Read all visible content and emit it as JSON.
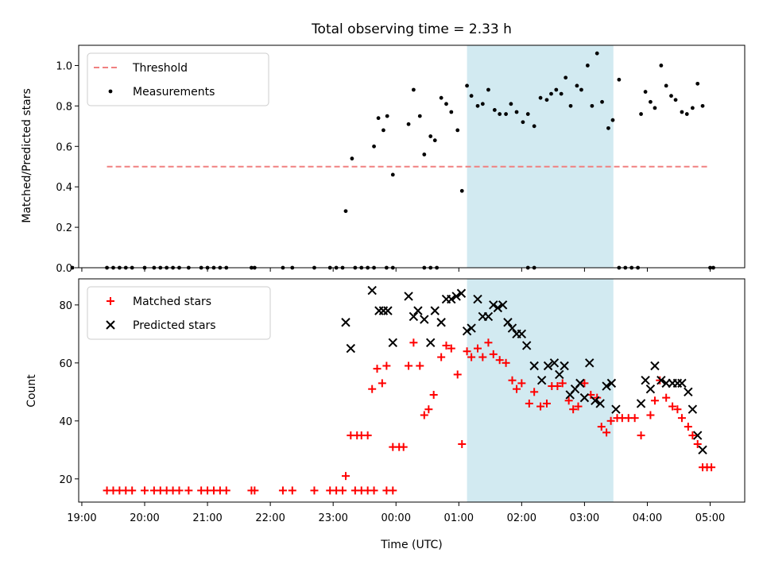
{
  "colors": {
    "threshold": "#f08080",
    "measurement": "#000000",
    "matched": "#ff0000",
    "predicted": "#000000",
    "span": "#add8e6"
  },
  "chart_data": [
    {
      "type": "scatter",
      "title": "Total observing time = 2.33 h",
      "ylabel": "Matched/Predicted stars",
      "ylim": [
        0,
        1.1
      ],
      "yticks": [
        0.0,
        0.2,
        0.4,
        0.6,
        0.8,
        1.0
      ],
      "ytick_labels": [
        "0.0",
        "0.2",
        "0.4",
        "0.6",
        "0.8",
        "1.0"
      ],
      "xlim_hours": [
        -5.05,
        5.55
      ],
      "legend": {
        "placement": "top-left",
        "entries": [
          "Threshold",
          "Measurements"
        ]
      },
      "shaded_span_hours": [
        1.13,
        3.46
      ],
      "threshold": {
        "name": "Threshold",
        "y": 0.5,
        "x_start": -4.6,
        "x_end": 5.0
      },
      "series": [
        {
          "name": "Measurements",
          "points": [
            [
              -4.6,
              0
            ],
            [
              -4.5,
              0
            ],
            [
              -4.4,
              0
            ],
            [
              -4.3,
              0
            ],
            [
              -4.2,
              0
            ],
            [
              -4.0,
              0
            ],
            [
              -3.85,
              0
            ],
            [
              -3.75,
              0
            ],
            [
              -3.65,
              0
            ],
            [
              -3.55,
              0
            ],
            [
              -3.45,
              0
            ],
            [
              -3.3,
              0
            ],
            [
              -3.1,
              0
            ],
            [
              -3.0,
              0
            ],
            [
              -2.9,
              0
            ],
            [
              -2.8,
              0
            ],
            [
              -2.7,
              0
            ],
            [
              -2.3,
              0
            ],
            [
              -2.25,
              0
            ],
            [
              -1.8,
              0
            ],
            [
              -1.65,
              0
            ],
            [
              -1.3,
              0
            ],
            [
              -1.05,
              0
            ],
            [
              -0.95,
              0
            ],
            [
              -0.85,
              0
            ],
            [
              -0.65,
              0
            ],
            [
              -0.55,
              0
            ],
            [
              -0.45,
              0
            ],
            [
              -0.35,
              0
            ],
            [
              -0.15,
              0
            ],
            [
              -0.05,
              0
            ],
            [
              0.45,
              0
            ],
            [
              0.55,
              0
            ],
            [
              0.65,
              0
            ],
            [
              2.1,
              0
            ],
            [
              2.2,
              0
            ],
            [
              5.0,
              0
            ],
            [
              5.05,
              0
            ],
            [
              -5.15,
              0
            ],
            [
              3.55,
              0
            ],
            [
              3.65,
              0
            ],
            [
              3.75,
              0
            ],
            [
              3.85,
              0
            ],
            [
              -0.8,
              0.28
            ],
            [
              -0.7,
              0.54
            ],
            [
              -0.35,
              0.6
            ],
            [
              -0.28,
              0.74
            ],
            [
              -0.2,
              0.68
            ],
            [
              -0.14,
              0.75
            ],
            [
              -0.05,
              0.46
            ],
            [
              0.2,
              0.71
            ],
            [
              0.28,
              0.88
            ],
            [
              0.38,
              0.75
            ],
            [
              0.45,
              0.56
            ],
            [
              0.55,
              0.65
            ],
            [
              0.62,
              0.63
            ],
            [
              0.72,
              0.84
            ],
            [
              0.8,
              0.81
            ],
            [
              0.88,
              0.77
            ],
            [
              0.98,
              0.68
            ],
            [
              1.05,
              0.38
            ],
            [
              1.13,
              0.9
            ],
            [
              1.2,
              0.85
            ],
            [
              1.3,
              0.8
            ],
            [
              1.38,
              0.81
            ],
            [
              1.47,
              0.88
            ],
            [
              1.57,
              0.78
            ],
            [
              1.65,
              0.76
            ],
            [
              1.75,
              0.76
            ],
            [
              1.83,
              0.81
            ],
            [
              1.92,
              0.77
            ],
            [
              2.02,
              0.72
            ],
            [
              2.1,
              0.76
            ],
            [
              2.2,
              0.7
            ],
            [
              2.3,
              0.84
            ],
            [
              2.4,
              0.83
            ],
            [
              2.47,
              0.86
            ],
            [
              2.55,
              0.88
            ],
            [
              2.63,
              0.86
            ],
            [
              2.7,
              0.94
            ],
            [
              2.78,
              0.8
            ],
            [
              2.88,
              0.9
            ],
            [
              2.95,
              0.88
            ],
            [
              3.05,
              1.0
            ],
            [
              3.12,
              0.8
            ],
            [
              3.2,
              1.06
            ],
            [
              3.28,
              0.82
            ],
            [
              3.38,
              0.69
            ],
            [
              3.45,
              0.73
            ],
            [
              3.55,
              0.93
            ],
            [
              3.9,
              0.76
            ],
            [
              3.97,
              0.87
            ],
            [
              4.05,
              0.82
            ],
            [
              4.12,
              0.79
            ],
            [
              4.22,
              1.0
            ],
            [
              4.3,
              0.9
            ],
            [
              4.38,
              0.85
            ],
            [
              4.45,
              0.83
            ],
            [
              4.55,
              0.77
            ],
            [
              4.63,
              0.76
            ],
            [
              4.72,
              0.79
            ],
            [
              4.8,
              0.91
            ],
            [
              4.88,
              0.8
            ]
          ]
        }
      ]
    },
    {
      "type": "scatter",
      "xlabel": "Time (UTC)",
      "ylabel": "Count",
      "ylim": [
        12,
        89
      ],
      "yticks": [
        20,
        40,
        60,
        80
      ],
      "ytick_labels": [
        "20",
        "40",
        "60",
        "80"
      ],
      "xlim_hours": [
        -5.05,
        5.55
      ],
      "xticks_hours": [
        -5,
        -4,
        -3,
        -2,
        -1,
        0,
        1,
        2,
        3,
        4,
        5
      ],
      "xtick_labels": [
        "19:00",
        "20:00",
        "21:00",
        "22:00",
        "23:00",
        "00:00",
        "01:00",
        "02:00",
        "03:00",
        "04:00",
        "05:00"
      ],
      "legend": {
        "placement": "top-left",
        "entries": [
          "Matched stars",
          "Predicted stars"
        ]
      },
      "shaded_span_hours": [
        1.13,
        3.46
      ],
      "series": [
        {
          "name": "Matched stars",
          "points": [
            [
              -4.6,
              16
            ],
            [
              -4.5,
              16
            ],
            [
              -4.4,
              16
            ],
            [
              -4.3,
              16
            ],
            [
              -4.2,
              16
            ],
            [
              -4.0,
              16
            ],
            [
              -3.85,
              16
            ],
            [
              -3.75,
              16
            ],
            [
              -3.65,
              16
            ],
            [
              -3.55,
              16
            ],
            [
              -3.45,
              16
            ],
            [
              -3.3,
              16
            ],
            [
              -3.1,
              16
            ],
            [
              -3.0,
              16
            ],
            [
              -2.9,
              16
            ],
            [
              -2.8,
              16
            ],
            [
              -2.7,
              16
            ],
            [
              -2.3,
              16
            ],
            [
              -2.25,
              16
            ],
            [
              -1.8,
              16
            ],
            [
              -1.65,
              16
            ],
            [
              -1.3,
              16
            ],
            [
              -1.05,
              16
            ],
            [
              -0.95,
              16
            ],
            [
              -0.85,
              16
            ],
            [
              -0.65,
              16
            ],
            [
              -0.55,
              16
            ],
            [
              -0.45,
              16
            ],
            [
              -0.35,
              16
            ],
            [
              -0.15,
              16
            ],
            [
              -0.05,
              16
            ],
            [
              -0.8,
              21
            ],
            [
              -0.72,
              35
            ],
            [
              -0.62,
              35
            ],
            [
              -0.55,
              35
            ],
            [
              -0.45,
              35
            ],
            [
              -0.38,
              51
            ],
            [
              -0.3,
              58
            ],
            [
              -0.22,
              53
            ],
            [
              -0.15,
              59
            ],
            [
              -0.05,
              31
            ],
            [
              0.05,
              31
            ],
            [
              0.12,
              31
            ],
            [
              0.2,
              59
            ],
            [
              0.28,
              67
            ],
            [
              0.38,
              59
            ],
            [
              0.45,
              42
            ],
            [
              0.52,
              44
            ],
            [
              0.6,
              49
            ],
            [
              0.72,
              62
            ],
            [
              0.8,
              66
            ],
            [
              0.88,
              65
            ],
            [
              0.98,
              56
            ],
            [
              1.05,
              32
            ],
            [
              1.13,
              64
            ],
            [
              1.2,
              62
            ],
            [
              1.3,
              65
            ],
            [
              1.38,
              62
            ],
            [
              1.47,
              67
            ],
            [
              1.55,
              63
            ],
            [
              1.65,
              61
            ],
            [
              1.75,
              60
            ],
            [
              1.85,
              54
            ],
            [
              1.92,
              51
            ],
            [
              2.0,
              53
            ],
            [
              2.12,
              46
            ],
            [
              2.2,
              50
            ],
            [
              2.3,
              45
            ],
            [
              2.4,
              46
            ],
            [
              2.48,
              52
            ],
            [
              2.57,
              52
            ],
            [
              2.65,
              53
            ],
            [
              2.75,
              47
            ],
            [
              2.82,
              44
            ],
            [
              2.9,
              45
            ],
            [
              3.0,
              53
            ],
            [
              3.1,
              49
            ],
            [
              3.2,
              48
            ],
            [
              3.27,
              38
            ],
            [
              3.35,
              36
            ],
            [
              3.42,
              40
            ],
            [
              3.52,
              41
            ],
            [
              3.6,
              41
            ],
            [
              3.7,
              41
            ],
            [
              3.8,
              41
            ],
            [
              3.9,
              35
            ],
            [
              4.05,
              42
            ],
            [
              4.12,
              47
            ],
            [
              4.2,
              54
            ],
            [
              4.3,
              48
            ],
            [
              4.4,
              45
            ],
            [
              4.48,
              44
            ],
            [
              4.55,
              41
            ],
            [
              4.65,
              38
            ],
            [
              4.72,
              35
            ],
            [
              4.8,
              32
            ],
            [
              4.88,
              24
            ],
            [
              4.95,
              24
            ],
            [
              5.02,
              24
            ]
          ]
        },
        {
          "name": "Predicted stars",
          "points": [
            [
              -0.8,
              74
            ],
            [
              -0.72,
              65
            ],
            [
              -0.38,
              85
            ],
            [
              -0.27,
              78
            ],
            [
              -0.2,
              78
            ],
            [
              -0.13,
              78
            ],
            [
              -0.05,
              67
            ],
            [
              0.2,
              83
            ],
            [
              0.28,
              76
            ],
            [
              0.35,
              78
            ],
            [
              0.45,
              75
            ],
            [
              0.55,
              67
            ],
            [
              0.62,
              78
            ],
            [
              0.72,
              74
            ],
            [
              0.8,
              82
            ],
            [
              0.88,
              82
            ],
            [
              0.96,
              83
            ],
            [
              1.04,
              84
            ],
            [
              1.13,
              71
            ],
            [
              1.2,
              72
            ],
            [
              1.3,
              82
            ],
            [
              1.38,
              76
            ],
            [
              1.47,
              76
            ],
            [
              1.55,
              80
            ],
            [
              1.62,
              79
            ],
            [
              1.7,
              80
            ],
            [
              1.78,
              74
            ],
            [
              1.85,
              72
            ],
            [
              1.92,
              70
            ],
            [
              2.0,
              70
            ],
            [
              2.08,
              66
            ],
            [
              2.2,
              59
            ],
            [
              2.32,
              54
            ],
            [
              2.42,
              59
            ],
            [
              2.52,
              60
            ],
            [
              2.6,
              56
            ],
            [
              2.68,
              59
            ],
            [
              2.77,
              49
            ],
            [
              2.85,
              51
            ],
            [
              2.93,
              53
            ],
            [
              3.0,
              48
            ],
            [
              3.08,
              60
            ],
            [
              3.17,
              47
            ],
            [
              3.25,
              46
            ],
            [
              3.35,
              52
            ],
            [
              3.43,
              53
            ],
            [
              3.5,
              44
            ],
            [
              3.9,
              46
            ],
            [
              3.97,
              54
            ],
            [
              4.05,
              51
            ],
            [
              4.12,
              59
            ],
            [
              4.22,
              54
            ],
            [
              4.3,
              53
            ],
            [
              4.4,
              53
            ],
            [
              4.48,
              53
            ],
            [
              4.55,
              53
            ],
            [
              4.65,
              50
            ],
            [
              4.72,
              44
            ],
            [
              4.8,
              35
            ],
            [
              4.88,
              30
            ]
          ]
        }
      ]
    }
  ]
}
